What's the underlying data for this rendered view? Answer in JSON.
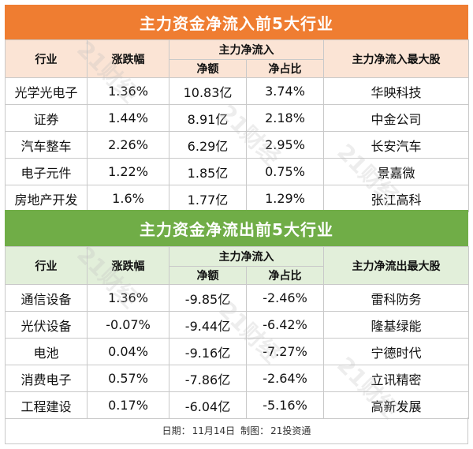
{
  "inflow": {
    "title": "主力资金净流入前5大行业",
    "headers": {
      "industry": "行业",
      "change": "涨跌幅",
      "net_flow": "主力净流入",
      "amount": "净额",
      "ratio": "净占比",
      "top_stock": "主力净流入最大股"
    },
    "rows": [
      {
        "industry": "光学光电子",
        "change": "1.36%",
        "amount": "10.83亿",
        "ratio": "3.74%",
        "stock": "华映科技"
      },
      {
        "industry": "证券",
        "change": "1.44%",
        "amount": "8.91亿",
        "ratio": "2.18%",
        "stock": "中金公司"
      },
      {
        "industry": "汽车整车",
        "change": "2.26%",
        "amount": "6.29亿",
        "ratio": "2.95%",
        "stock": "长安汽车"
      },
      {
        "industry": "电子元件",
        "change": "1.22%",
        "amount": "1.85亿",
        "ratio": "0.75%",
        "stock": "景嘉微"
      },
      {
        "industry": "房地产开发",
        "change": "1.6%",
        "amount": "1.77亿",
        "ratio": "1.29%",
        "stock": "张江高科"
      }
    ]
  },
  "outflow": {
    "title": "主力资金净流出前5大行业",
    "headers": {
      "industry": "行业",
      "change": "涨跌幅",
      "net_flow": "主力净流入",
      "amount": "净额",
      "ratio": "净占比",
      "top_stock": "主力净流出最大股"
    },
    "rows": [
      {
        "industry": "通信设备",
        "change": "1.36%",
        "amount": "-9.85亿",
        "ratio": "-2.46%",
        "stock": "雷科防务"
      },
      {
        "industry": "光伏设备",
        "change": "-0.07%",
        "amount": "-9.44亿",
        "ratio": "-6.42%",
        "stock": "隆基绿能"
      },
      {
        "industry": "电池",
        "change": "0.04%",
        "amount": "-9.16亿",
        "ratio": "-7.27%",
        "stock": "宁德时代"
      },
      {
        "industry": "消费电子",
        "change": "0.57%",
        "amount": "-7.86亿",
        "ratio": "-2.64%",
        "stock": "立讯精密"
      },
      {
        "industry": "工程建设",
        "change": "0.17%",
        "amount": "-6.04亿",
        "ratio": "-5.16%",
        "stock": "高新发展"
      }
    ]
  },
  "footer": {
    "date_label": "日期：",
    "date": "11月14日",
    "maker_label": "制图：",
    "maker": "21投资通"
  },
  "watermark": "21财经",
  "colors": {
    "inflow_band": "#ef7d31",
    "inflow_header": "#fbe4d5",
    "outflow_band": "#70ad47",
    "outflow_header": "#e2efda"
  }
}
